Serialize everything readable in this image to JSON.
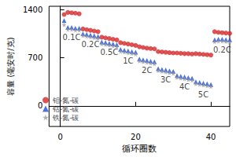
{
  "chart_data": {
    "type": "scatter",
    "x_label": "循环圈数",
    "y_label": "容量 (毫安时/克)",
    "xlim": [
      -3,
      45
    ],
    "xticks": [
      0,
      20,
      40
    ],
    "ylim": [
      -300,
      1450
    ],
    "yticks": [
      0,
      700,
      1400
    ],
    "legend": "lower left",
    "x": [
      1,
      2,
      3,
      4,
      5,
      6,
      7,
      8,
      9,
      10,
      11,
      12,
      13,
      14,
      15,
      16,
      17,
      18,
      19,
      20,
      21,
      22,
      23,
      24,
      25,
      26,
      27,
      28,
      29,
      30,
      31,
      32,
      33,
      34,
      35,
      36,
      37,
      38,
      39,
      40,
      41,
      42,
      43,
      44,
      45
    ],
    "series": [
      {
        "name": "钼-氮-碳",
        "color": "#d62728",
        "marker": "circle",
        "values": [
          1330,
          1360,
          1355,
          1350,
          1340,
          1120,
          1110,
          1100,
          1090,
          1080,
          1000,
          990,
          980,
          970,
          960,
          920,
          910,
          900,
          890,
          880,
          860,
          850,
          840,
          835,
          830,
          790,
          785,
          780,
          775,
          770,
          770,
          765,
          760,
          760,
          755,
          760,
          755,
          750,
          745,
          740,
          1080,
          1070,
          1065,
          1060,
          1055
        ]
      },
      {
        "name": "钴-氮-碳",
        "color": "#1f4fd8",
        "marker": "triangle",
        "values": [
          1240,
          1140,
          1140,
          1130,
          1130,
          1050,
          1040,
          1030,
          1020,
          1010,
          930,
          920,
          910,
          900,
          890,
          820,
          810,
          800,
          790,
          780,
          680,
          670,
          660,
          650,
          640,
          540,
          530,
          520,
          510,
          500,
          440,
          430,
          420,
          410,
          400,
          350,
          340,
          330,
          320,
          310,
          960,
          970,
          970,
          965,
          960
        ]
      },
      {
        "name": "铁-氮-碳",
        "color": "#9a9a9a",
        "marker": "star",
        "values": [
          1180,
          1110,
          1110,
          1100,
          1100,
          1020,
          1010,
          1000,
          990,
          980,
          900,
          890,
          880,
          870,
          860,
          790,
          780,
          770,
          760,
          750,
          650,
          640,
          630,
          620,
          610,
          510,
          500,
          490,
          480,
          470,
          410,
          400,
          390,
          380,
          370,
          320,
          310,
          300,
          290,
          280,
          930,
          940,
          940,
          935,
          930
        ]
      }
    ],
    "annotations": [
      {
        "text": "0.1C",
        "x": 3,
        "y": 1000
      },
      {
        "text": "0.2C",
        "x": 8,
        "y": 900
      },
      {
        "text": "0.5C",
        "x": 13,
        "y": 780
      },
      {
        "text": "1C",
        "x": 18,
        "y": 650
      },
      {
        "text": "2C",
        "x": 23,
        "y": 520
      },
      {
        "text": "3C",
        "x": 28,
        "y": 380
      },
      {
        "text": "4C",
        "x": 33,
        "y": 280
      },
      {
        "text": "5C",
        "x": 38,
        "y": 160
      },
      {
        "text": "0.2C",
        "x": 43,
        "y": 810
      }
    ]
  }
}
